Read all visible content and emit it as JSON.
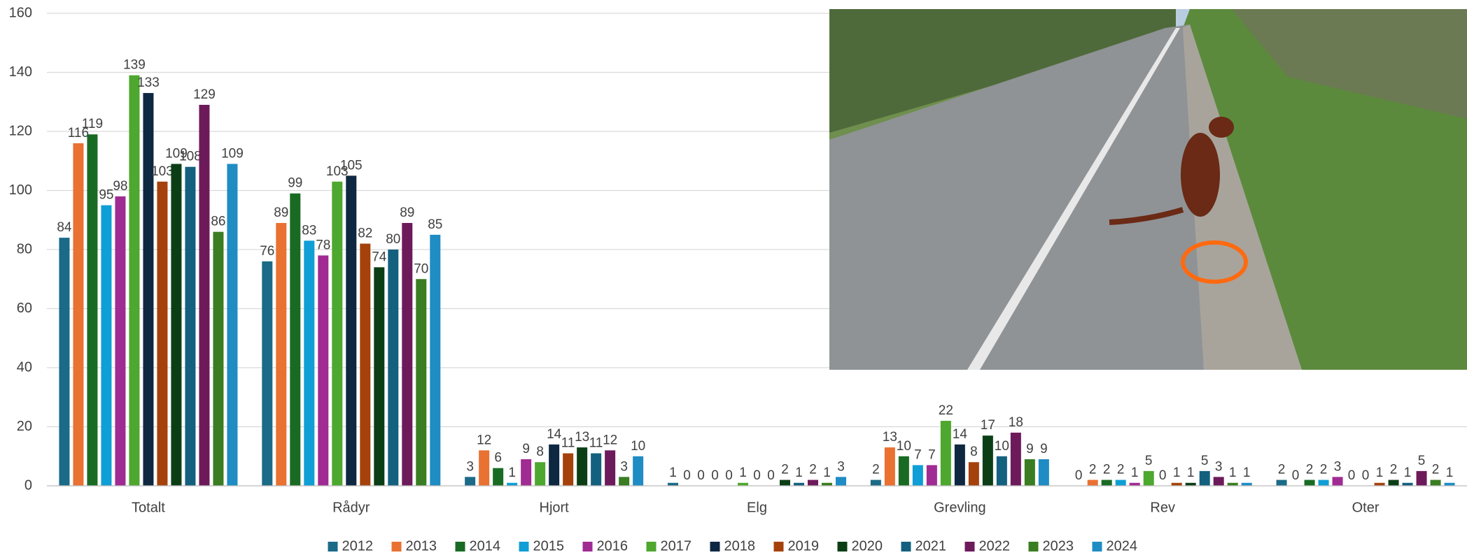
{
  "chart_data": {
    "type": "bar",
    "categories": [
      "Totalt",
      "Rådyr",
      "Hjort",
      "Elg",
      "Grevling",
      "Rev",
      "Oter"
    ],
    "series": [
      {
        "name": "2012",
        "color": "#1b6a87",
        "values": [
          84,
          76,
          3,
          1,
          2,
          0,
          2
        ]
      },
      {
        "name": "2013",
        "color": "#e97132",
        "values": [
          116,
          89,
          12,
          0,
          13,
          2,
          0
        ]
      },
      {
        "name": "2014",
        "color": "#196b24",
        "values": [
          119,
          99,
          6,
          0,
          10,
          2,
          2
        ]
      },
      {
        "name": "2015",
        "color": "#0f9ed5",
        "values": [
          95,
          83,
          1,
          0,
          7,
          2,
          2
        ]
      },
      {
        "name": "2016",
        "color": "#a02b93",
        "values": [
          98,
          78,
          9,
          0,
          7,
          1,
          3
        ]
      },
      {
        "name": "2017",
        "color": "#4ea72e",
        "values": [
          139,
          103,
          8,
          1,
          22,
          5,
          0
        ]
      },
      {
        "name": "2018",
        "color": "#0e2841",
        "values": [
          133,
          105,
          14,
          0,
          14,
          0,
          0
        ]
      },
      {
        "name": "2019",
        "color": "#a5420c",
        "values": [
          103,
          82,
          11,
          0,
          8,
          1,
          1
        ]
      },
      {
        "name": "2020",
        "color": "#0c3e16",
        "values": [
          109,
          74,
          13,
          2,
          17,
          1,
          2
        ]
      },
      {
        "name": "2021",
        "color": "#14607f",
        "values": [
          108,
          80,
          11,
          1,
          10,
          5,
          1
        ]
      },
      {
        "name": "2022",
        "color": "#6d1a5b",
        "values": [
          129,
          89,
          12,
          2,
          18,
          3,
          5
        ]
      },
      {
        "name": "2023",
        "color": "#3a7d22",
        "values": [
          86,
          70,
          3,
          1,
          9,
          1,
          2
        ]
      },
      {
        "name": "2024",
        "color": "#1f8cc4",
        "values": [
          109,
          85,
          10,
          3,
          9,
          1,
          1
        ]
      }
    ],
    "ylim": [
      0,
      160
    ],
    "yticks": [
      0,
      20,
      40,
      60,
      80,
      100,
      120,
      140,
      160
    ],
    "grid": true
  }
}
